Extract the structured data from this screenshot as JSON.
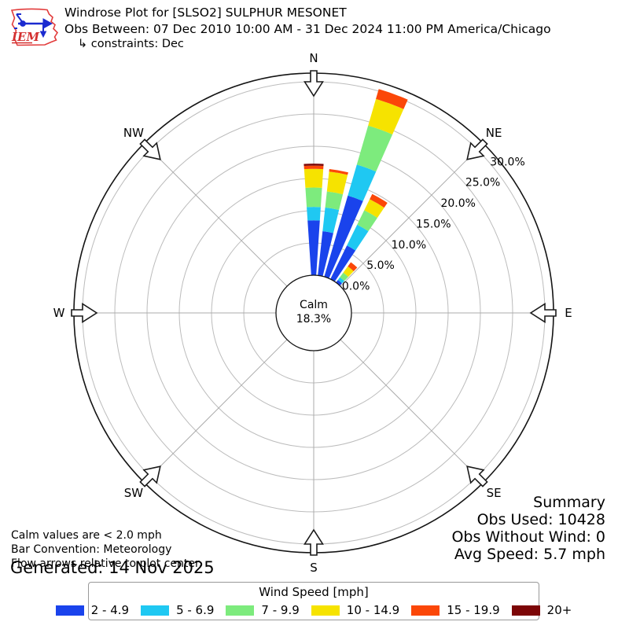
{
  "header": {
    "title": "Windrose Plot for [SLSO2] SULPHUR MESONET",
    "subtitle": "Obs Between: 07 Dec 2010 10:00 AM - 31 Dec 2024 11:00 PM America/Chicago",
    "constraints": "↳ constraints: Dec",
    "logo_text": "IEM"
  },
  "chart_data": {
    "type": "windrose",
    "units": "mph",
    "title": "Windrose Plot for [SLSO2] SULPHUR MESONET",
    "sector_width_deg": 10,
    "bar_convention": "Meteorology",
    "ring_values": [
      0,
      5,
      10,
      15,
      20,
      25,
      30
    ],
    "ring_labels": [
      "0.0%",
      "5.0%",
      "10.0%",
      "15.0%",
      "20.0%",
      "25.0%",
      "30.0%"
    ],
    "axis_max_percent": 31.3,
    "compass_labels": [
      "N",
      "NE",
      "E",
      "SE",
      "S",
      "SW",
      "W",
      "NW"
    ],
    "calm": {
      "label": "Calm",
      "value": "18.3%"
    },
    "speed_bins": [
      {
        "label": "2 - 4.9",
        "color": "#1a43ec"
      },
      {
        "label": "5 - 6.9",
        "color": "#1fc8f2"
      },
      {
        "label": "7 - 9.9",
        "color": "#7deb7d"
      },
      {
        "label": "10 - 14.9",
        "color": "#f6e300"
      },
      {
        "label": "15 - 19.9",
        "color": "#fb4708"
      },
      {
        "label": "20+",
        "color": "#7c0607"
      }
    ],
    "bars": [
      {
        "direction_deg": 0,
        "segments": [
          8.5,
          2.1,
          3.0,
          2.9,
          0.5,
          0.3
        ]
      },
      {
        "direction_deg": 10,
        "segments": [
          6.9,
          3.7,
          2.5,
          3.1,
          0.4,
          0
        ]
      },
      {
        "direction_deg": 20,
        "segments": [
          13.1,
          5.0,
          6.3,
          4.3,
          1.6,
          0
        ]
      },
      {
        "direction_deg": 30,
        "segments": [
          5.8,
          3.6,
          2.5,
          1.9,
          0.9,
          0
        ]
      },
      {
        "direction_deg": 40,
        "segments": [
          0.5,
          0.5,
          0.9,
          1.2,
          0.8,
          0
        ]
      }
    ],
    "legend_position": "bottom",
    "grid": true
  },
  "legend": {
    "title": "Wind Speed [mph]"
  },
  "notes": {
    "lines": [
      "Calm values are < 2.0 mph",
      "Bar Convention: Meteorology",
      "Flow arrows relative to plot center."
    ],
    "generated": "Generated: 14 Nov 2025"
  },
  "summary": {
    "title": "Summary",
    "lines": [
      "Obs Used: 10428",
      "Obs Without Wind: 0",
      "Avg Speed: 5.7 mph"
    ]
  }
}
